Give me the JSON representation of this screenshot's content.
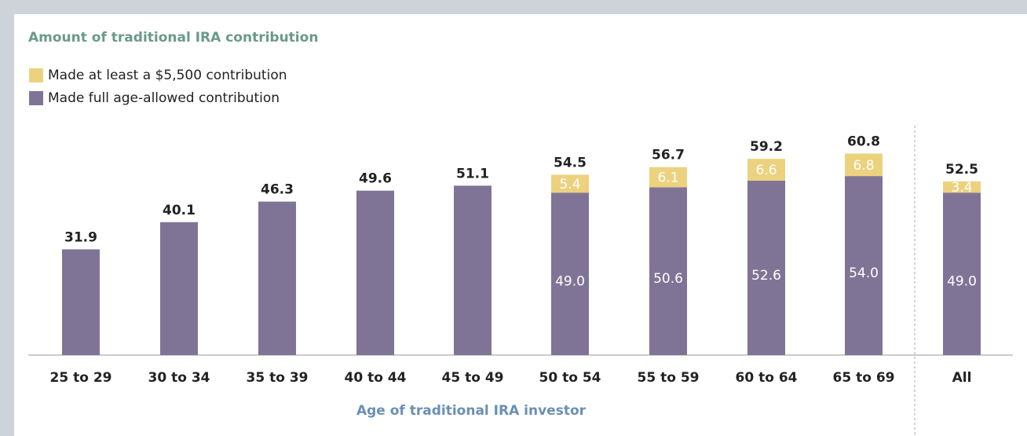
{
  "chart_data": {
    "type": "stacked_bar",
    "title": "Amount of traditional IRA contribution",
    "x_label": "Age of traditional IRA investor",
    "categories": [
      "25 to 29",
      "30 to 34",
      "35 to 39",
      "40 to 44",
      "45 to 49",
      "50 to 54",
      "55 to 59",
      "60 to 64",
      "65 to 69",
      "All"
    ],
    "series": [
      {
        "name": "Made full age-allowed contribution",
        "color": "#807496",
        "values": [
          31.9,
          40.1,
          46.3,
          49.6,
          51.1,
          49.0,
          50.6,
          52.6,
          54.0,
          49.0
        ],
        "value_labels": [
          "31.9",
          "40.1",
          "46.3",
          "49.6",
          "51.1",
          "49.0",
          "50.6",
          "52.6",
          "54.0",
          "49.0"
        ]
      },
      {
        "name": "Made at least a $5,500 contribution",
        "color": "#ecd27f",
        "values": [
          null,
          null,
          null,
          null,
          null,
          5.4,
          6.1,
          6.6,
          6.8,
          3.4
        ]
      }
    ],
    "totals": [
      null,
      null,
      null,
      null,
      null,
      54.5,
      56.7,
      59.2,
      60.8,
      52.5
    ]
  }
}
